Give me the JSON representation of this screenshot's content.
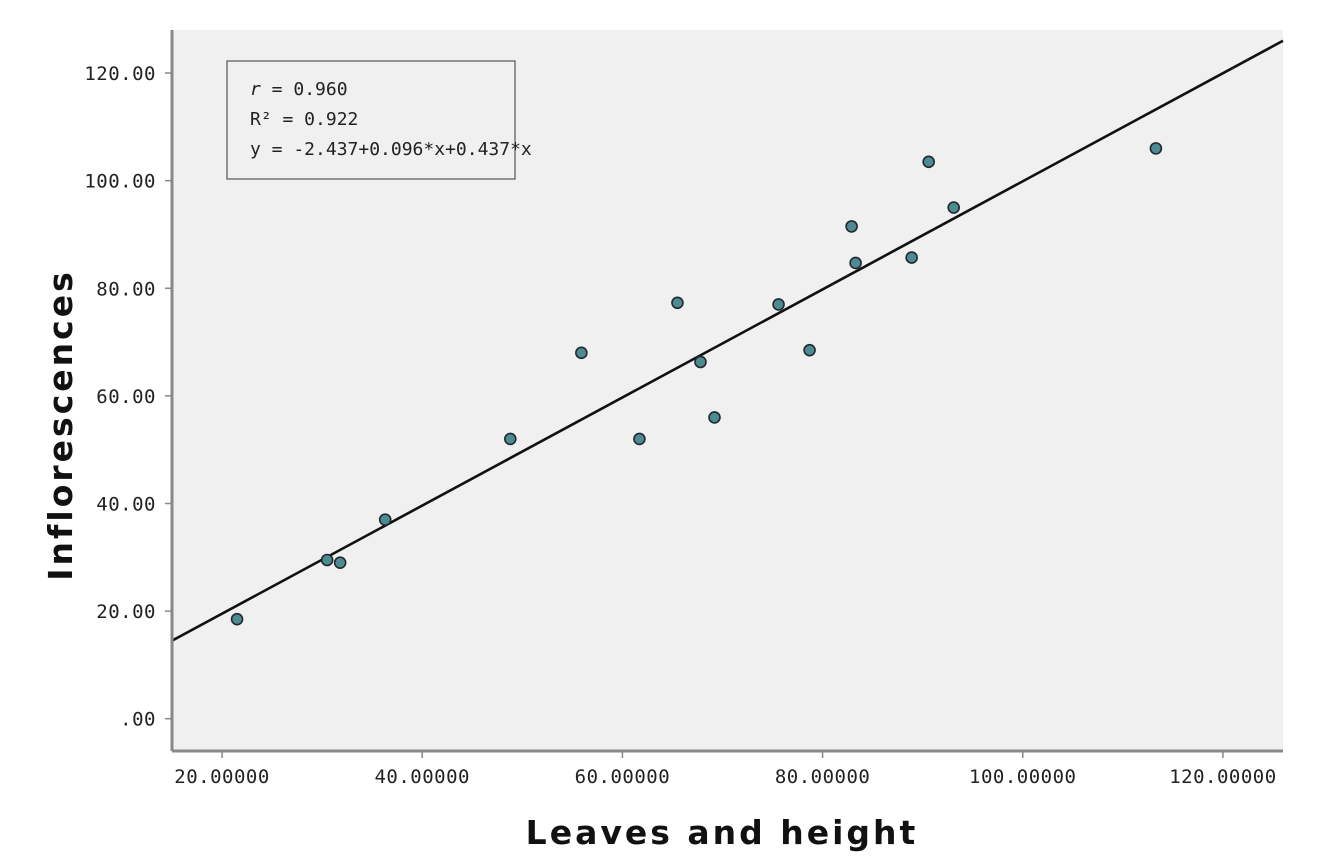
{
  "chart_data": {
    "type": "scatter",
    "xlabel": "Leaves and height",
    "ylabel": "Inflorescences",
    "xlim": [
      15,
      126
    ],
    "ylim": [
      -6,
      128
    ],
    "x_ticks": [
      20,
      40,
      60,
      80,
      100,
      120
    ],
    "y_ticks": [
      0,
      20,
      40,
      60,
      80,
      100,
      120
    ],
    "x_tick_labels": [
      "20.00000",
      "40.00000",
      "60.00000",
      "80.00000",
      "100.00000",
      "120.00000"
    ],
    "y_tick_labels": [
      ".00",
      "20.00",
      "40.00",
      "60.00",
      "80.00",
      "100.00",
      "120.00"
    ],
    "grid": false,
    "points": [
      {
        "x": 21.5,
        "y": 18.5
      },
      {
        "x": 30.5,
        "y": 29.5
      },
      {
        "x": 31.8,
        "y": 29.0
      },
      {
        "x": 36.3,
        "y": 37.0
      },
      {
        "x": 48.8,
        "y": 52.0
      },
      {
        "x": 55.9,
        "y": 68.0
      },
      {
        "x": 61.7,
        "y": 52.0
      },
      {
        "x": 65.5,
        "y": 77.3
      },
      {
        "x": 67.8,
        "y": 66.3
      },
      {
        "x": 69.2,
        "y": 56.0
      },
      {
        "x": 75.6,
        "y": 77.0
      },
      {
        "x": 78.7,
        "y": 68.5
      },
      {
        "x": 82.9,
        "y": 91.5
      },
      {
        "x": 83.3,
        "y": 84.7
      },
      {
        "x": 88.9,
        "y": 85.7
      },
      {
        "x": 90.6,
        "y": 103.5
      },
      {
        "x": 93.1,
        "y": 95.0
      },
      {
        "x": 113.3,
        "y": 106.0
      }
    ],
    "fit_line": {
      "x": [
        15,
        126
      ],
      "y": [
        14.5,
        126.0
      ]
    },
    "annotation": {
      "r_label": "r",
      "r_value": " = 0.960",
      "r2": "R² = 0.922",
      "equation": "y = -2.437+0.096*x+0.437*x"
    },
    "colors": {
      "plot_bg": "#f0f0f0",
      "marker_fill": "#4e8a94",
      "marker_stroke": "#1e2a2e",
      "line": "#111111",
      "axis": "#888888"
    }
  }
}
